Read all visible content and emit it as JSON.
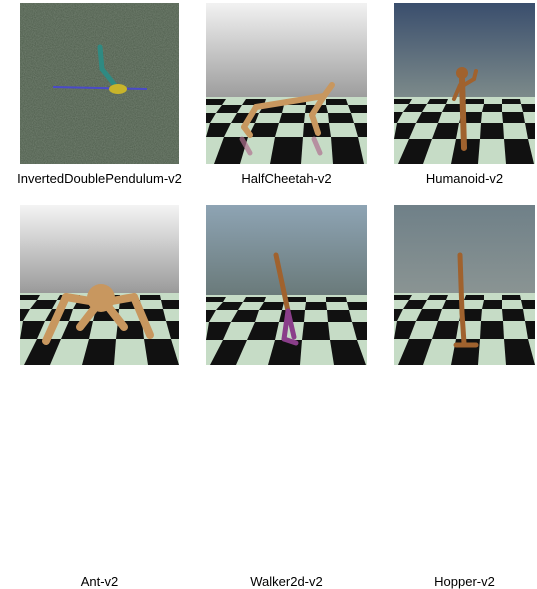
{
  "environments": [
    {
      "name": "InvertedDoublePendulum-v2",
      "icon": "inverted-double-pendulum-render"
    },
    {
      "name": "HalfCheetah-v2",
      "icon": "half-cheetah-render"
    },
    {
      "name": "Humanoid-v2",
      "icon": "humanoid-render"
    },
    {
      "name": "Ant-v2",
      "icon": "ant-render"
    },
    {
      "name": "Walker2d-v2",
      "icon": "walker2d-render"
    },
    {
      "name": "Hopper-v2",
      "icon": "hopper-render"
    }
  ],
  "colors": {
    "noise_bg": "#4d5c4b",
    "sky_top": "#b4b4b4",
    "sky_blue_top": "#3a4e6d",
    "checker_light": "#c6dcc6",
    "checker_dark": "#111111",
    "body_tan": "#c8975f",
    "body_brown": "#8a4e2a",
    "pendulum_teal": "#2f8a82",
    "cart_yellow": "#c8b42a",
    "rail_blue": "#4a4ac8"
  }
}
